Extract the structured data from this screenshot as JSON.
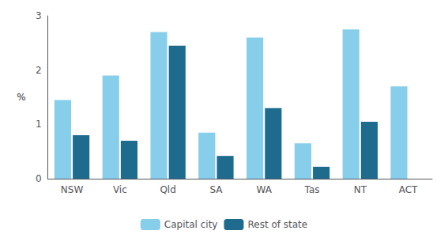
{
  "chart_data": {
    "type": "bar",
    "ylabel": "%",
    "categories": [
      "NSW",
      "Vic",
      "Qld",
      "SA",
      "WA",
      "Tas",
      "NT",
      "ACT"
    ],
    "series": [
      {
        "name": "Capital city",
        "color": "#87CEEB",
        "values": [
          1.45,
          1.9,
          2.7,
          0.85,
          2.6,
          0.65,
          2.75,
          1.7
        ]
      },
      {
        "name": "Rest of state",
        "color": "#1F6B8E",
        "values": [
          0.8,
          0.7,
          2.45,
          0.42,
          1.3,
          0.22,
          1.05,
          0.0
        ]
      }
    ],
    "ylim": [
      0,
      3
    ],
    "yticks": [
      0,
      1,
      2,
      3
    ],
    "grid": false,
    "legend": "bottom"
  }
}
